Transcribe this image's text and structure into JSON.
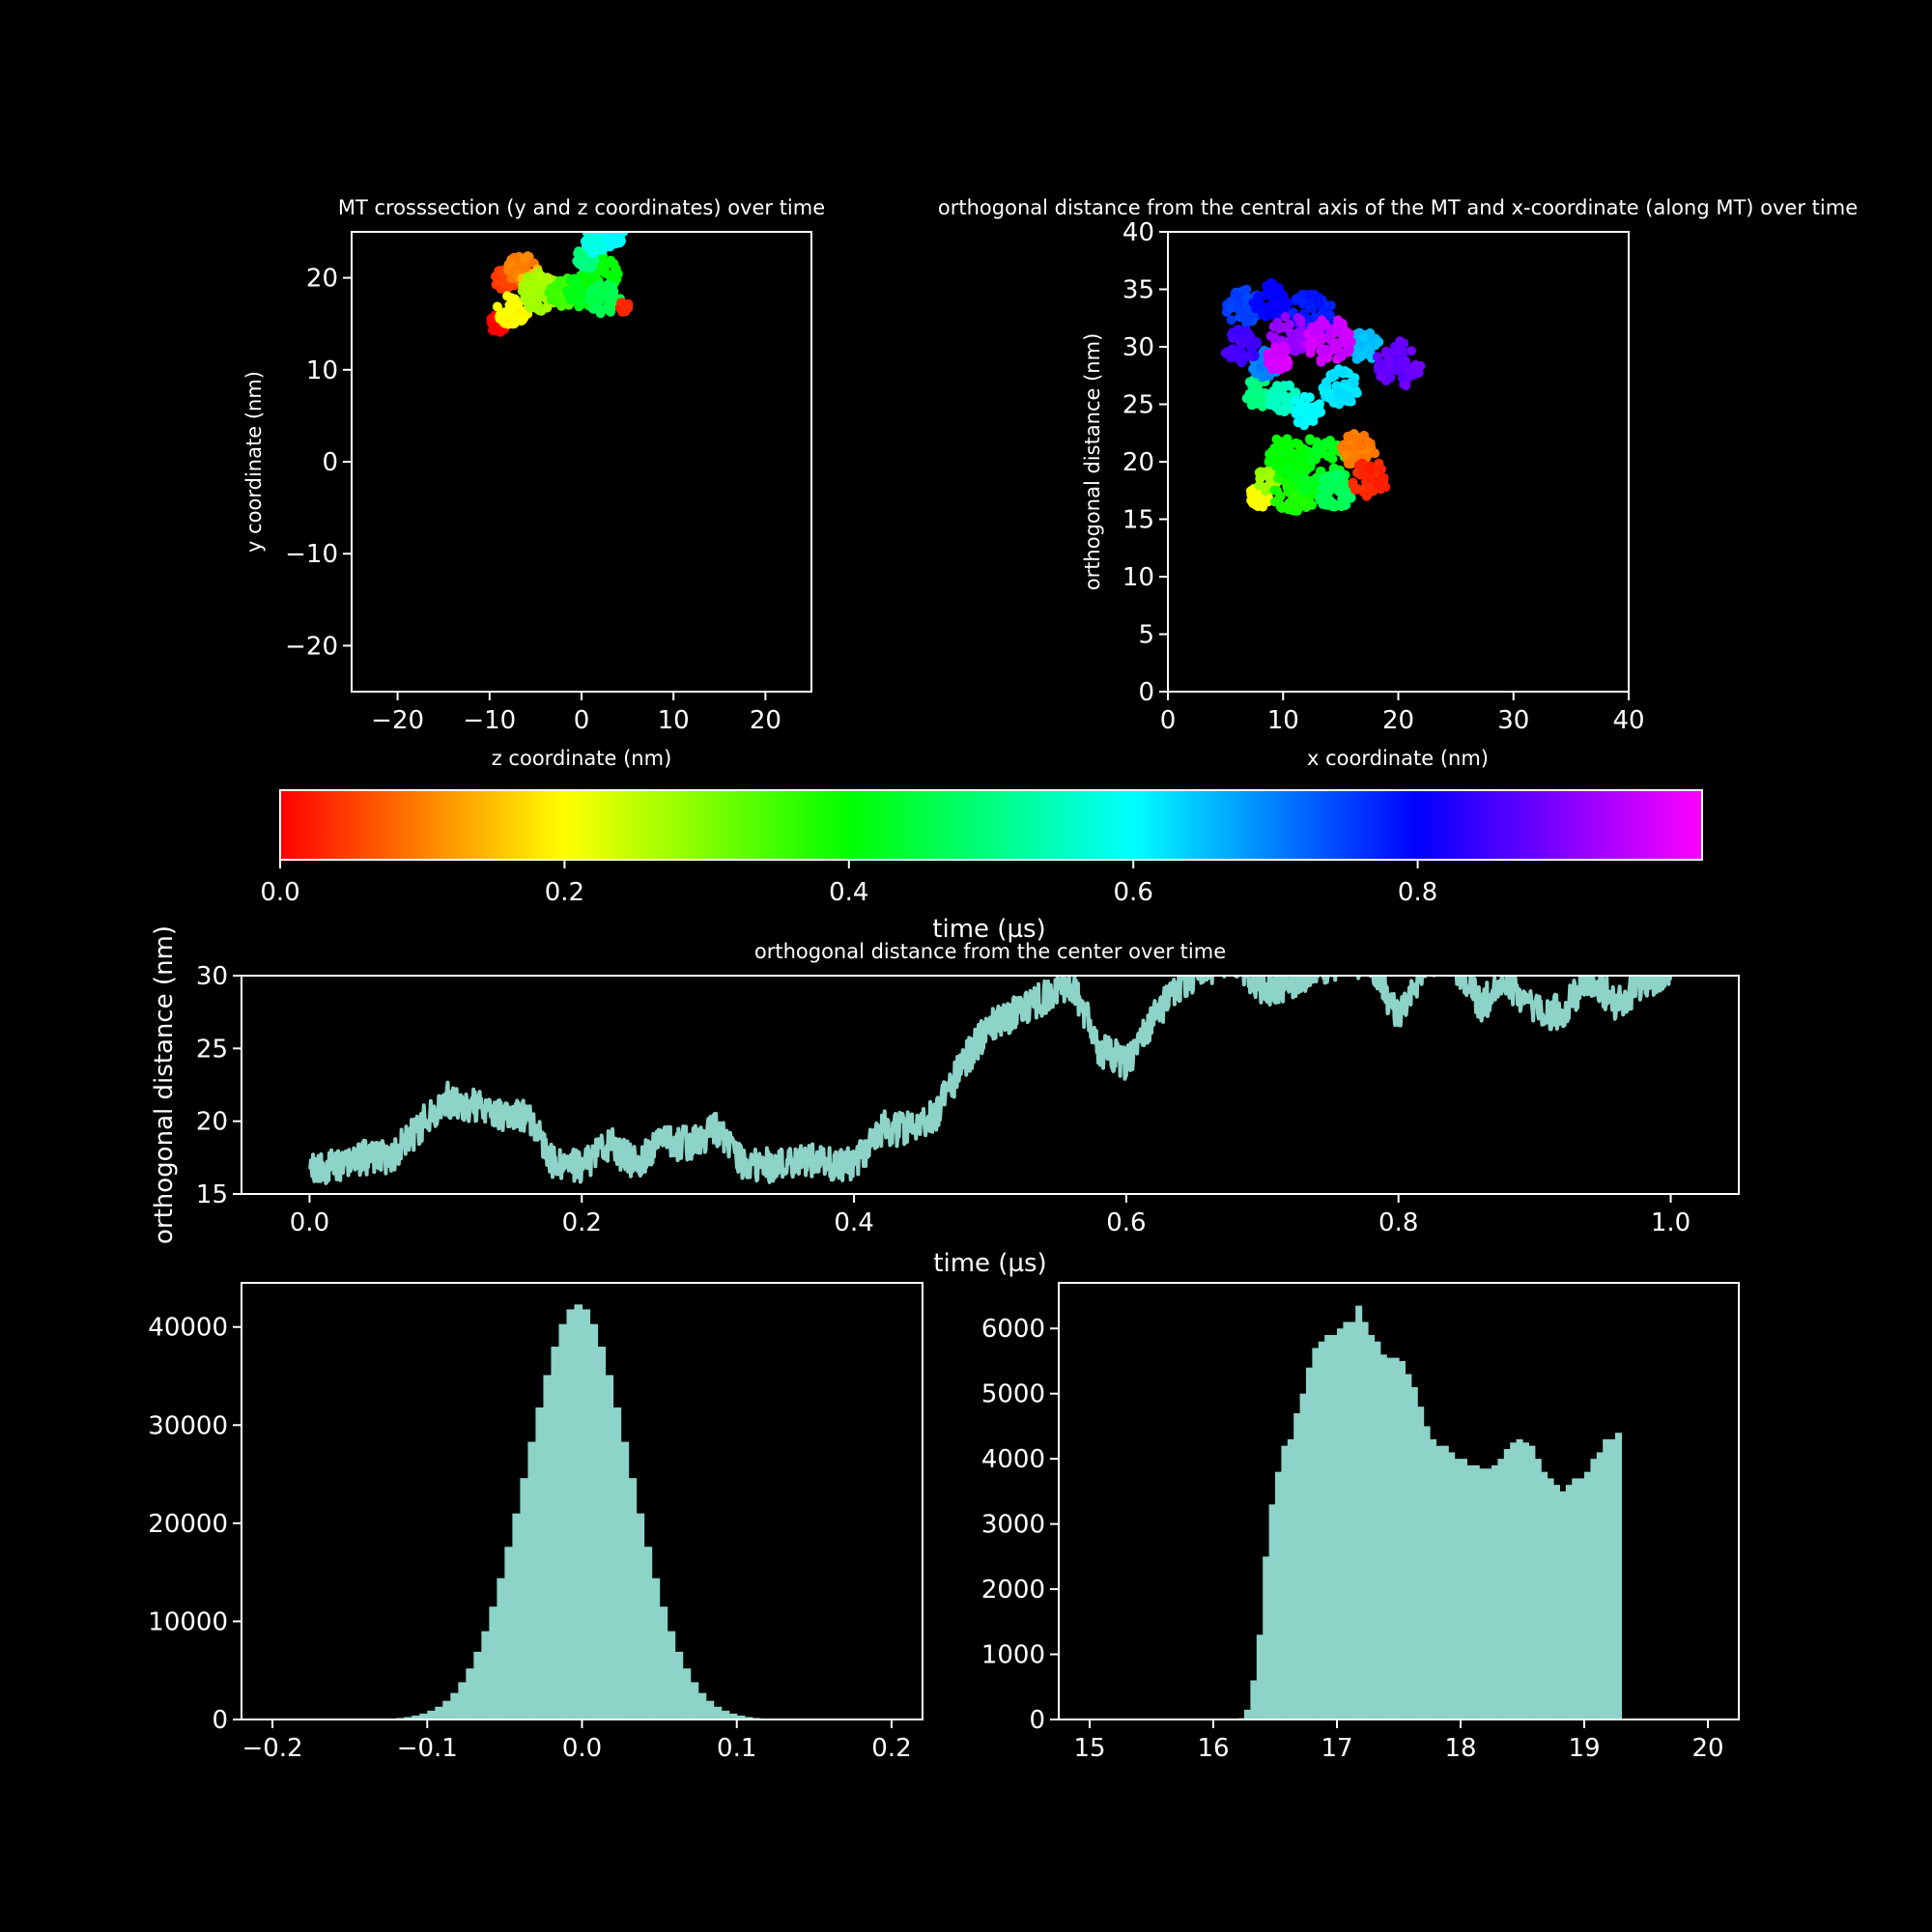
{
  "colors": {
    "background": "#000000",
    "foreground": "#ffffff",
    "series": "#8dd3c7",
    "colormap": [
      "#ff0000",
      "#ffff00",
      "#00ff00",
      "#00ffff",
      "#0000ff",
      "#ff00ff"
    ]
  },
  "chart_data": [
    {
      "id": "crosssection",
      "type": "scatter",
      "title": "MT crosssection (y and z coordinates) over time",
      "xlabel": "z coordinate (nm)",
      "ylabel": "y coordinate (nm)",
      "xlim": [
        -25,
        25
      ],
      "ylim": [
        -25,
        25
      ],
      "xticks": [
        -20,
        -10,
        0,
        10,
        20
      ],
      "xtick_labels": [
        "−20",
        "−10",
        "0",
        "10",
        "20"
      ],
      "yticks": [
        -20,
        -10,
        0,
        10,
        20
      ],
      "ytick_labels": [
        "−20",
        "−10",
        "0",
        "10",
        "20"
      ],
      "color_by": "time (µs)",
      "clusters": [
        {
          "t": 0.0,
          "x": -9.0,
          "y": 15.0,
          "r": 1.0
        },
        {
          "t": 0.05,
          "x": -8.3,
          "y": 19.8,
          "r": 1.2
        },
        {
          "t": 0.1,
          "x": -6.5,
          "y": 21.0,
          "r": 1.6
        },
        {
          "t": 0.15,
          "x": -5.0,
          "y": 19.5,
          "r": 1.6
        },
        {
          "t": 0.2,
          "x": -7.5,
          "y": 16.5,
          "r": 1.7
        },
        {
          "t": 0.27,
          "x": -4.5,
          "y": 18.5,
          "r": 2.1
        },
        {
          "t": 0.35,
          "x": -2.0,
          "y": 18.5,
          "r": 1.6
        },
        {
          "t": 0.42,
          "x": 0.2,
          "y": 18.5,
          "r": 1.9
        },
        {
          "t": 0.4,
          "x": 2.0,
          "y": 20.5,
          "r": 2.0
        },
        {
          "t": 0.46,
          "x": 2.5,
          "y": 17.8,
          "r": 1.7
        },
        {
          "t": 0.5,
          "x": 0.5,
          "y": 22.0,
          "r": 1.2
        },
        {
          "t": 0.58,
          "x": 1.5,
          "y": 24.0,
          "r": 1.3
        },
        {
          "t": 0.61,
          "x": 3.5,
          "y": 24.5,
          "r": 1.2
        },
        {
          "t": 0.03,
          "x": 4.6,
          "y": 16.8,
          "r": 0.6
        }
      ]
    },
    {
      "id": "orthogonal-vs-x",
      "type": "scatter",
      "title": "orthogonal distance from the central axis of the MT and x-coordinate (along MT) over time",
      "xlabel": "x coordinate (nm)",
      "ylabel": "orthogonal distance (nm)",
      "xlim": [
        0,
        40
      ],
      "ylim": [
        0,
        40
      ],
      "xticks": [
        0,
        10,
        20,
        30,
        40
      ],
      "xtick_labels": [
        "0",
        "10",
        "20",
        "30",
        "40"
      ],
      "yticks": [
        0,
        5,
        10,
        15,
        20,
        25,
        30,
        35,
        40
      ],
      "ytick_labels": [
        "0",
        "5",
        "10",
        "15",
        "20",
        "25",
        "30",
        "35",
        "40"
      ],
      "color_by": "time (µs)",
      "clusters": [
        {
          "t": 0.2,
          "x": 8.0,
          "y": 17.0,
          "r": 1.0
        },
        {
          "t": 0.28,
          "x": 9.0,
          "y": 18.5,
          "r": 1.2
        },
        {
          "t": 0.38,
          "x": 11.0,
          "y": 17.5,
          "r": 2.0
        },
        {
          "t": 0.42,
          "x": 13.0,
          "y": 19.5,
          "r": 2.6
        },
        {
          "t": 0.4,
          "x": 10.5,
          "y": 20.5,
          "r": 1.8
        },
        {
          "t": 0.47,
          "x": 14.5,
          "y": 17.5,
          "r": 1.6
        },
        {
          "t": 0.1,
          "x": 16.5,
          "y": 21.0,
          "r": 1.5
        },
        {
          "t": 0.03,
          "x": 17.5,
          "y": 18.5,
          "r": 1.6
        },
        {
          "t": 0.5,
          "x": 8.0,
          "y": 26.0,
          "r": 1.3
        },
        {
          "t": 0.55,
          "x": 10.0,
          "y": 25.5,
          "r": 1.3
        },
        {
          "t": 0.6,
          "x": 12.0,
          "y": 24.5,
          "r": 1.4
        },
        {
          "t": 0.62,
          "x": 15.0,
          "y": 26.5,
          "r": 1.6
        },
        {
          "t": 0.65,
          "x": 17.0,
          "y": 30.0,
          "r": 1.4
        },
        {
          "t": 0.7,
          "x": 8.5,
          "y": 28.5,
          "r": 1.2
        },
        {
          "t": 0.75,
          "x": 6.5,
          "y": 33.5,
          "r": 1.6
        },
        {
          "t": 0.8,
          "x": 9.0,
          "y": 34.0,
          "r": 1.6
        },
        {
          "t": 0.78,
          "x": 12.5,
          "y": 33.0,
          "r": 1.8
        },
        {
          "t": 0.85,
          "x": 6.5,
          "y": 30.0,
          "r": 1.6
        },
        {
          "t": 0.88,
          "x": 20.0,
          "y": 28.5,
          "r": 2.0
        },
        {
          "t": 0.92,
          "x": 10.5,
          "y": 31.0,
          "r": 1.8
        },
        {
          "t": 0.96,
          "x": 14.0,
          "y": 30.5,
          "r": 2.0
        },
        {
          "t": 0.97,
          "x": 9.5,
          "y": 29.0,
          "r": 1.2
        }
      ]
    },
    {
      "id": "colorbar",
      "type": "heatmap",
      "xlabel": "time (µs)",
      "range": [
        0,
        1
      ],
      "ticks": [
        0.0,
        0.2,
        0.4,
        0.6,
        0.8
      ],
      "tick_labels": [
        "0.0",
        "0.2",
        "0.4",
        "0.6",
        "0.8"
      ]
    },
    {
      "id": "distance-over-time",
      "type": "line",
      "title": "orthogonal distance from the center over time",
      "xlabel": "time (µs)",
      "ylabel": "orthogonal distance (nm)",
      "xlim": [
        -0.05,
        1.05
      ],
      "ylim": [
        15,
        30
      ],
      "xticks": [
        0.0,
        0.2,
        0.4,
        0.6,
        0.8,
        1.0
      ],
      "xtick_labels": [
        "0.0",
        "0.2",
        "0.4",
        "0.6",
        "0.8",
        "1.0"
      ],
      "yticks": [
        15,
        20,
        25,
        30
      ],
      "ytick_labels": [
        "15",
        "20",
        "25",
        "30"
      ],
      "x": [
        0.0,
        0.02,
        0.04,
        0.06,
        0.08,
        0.1,
        0.12,
        0.14,
        0.16,
        0.18,
        0.2,
        0.22,
        0.24,
        0.26,
        0.28,
        0.3,
        0.32,
        0.34,
        0.36,
        0.38,
        0.4,
        0.42,
        0.44,
        0.46,
        0.48,
        0.5,
        0.52,
        0.54,
        0.56,
        0.58,
        0.6,
        0.62,
        0.64,
        0.66,
        0.68,
        0.7,
        0.72,
        0.74,
        0.76,
        0.78,
        0.8,
        0.82,
        0.84,
        0.86,
        0.88,
        0.9,
        0.92,
        0.94,
        0.96,
        0.98,
        1.0
      ],
      "y": [
        16.5,
        17.0,
        17.5,
        17.5,
        19.5,
        21.5,
        21.0,
        20.5,
        20.5,
        17.0,
        17.0,
        18.5,
        17.0,
        18.5,
        18.5,
        19.5,
        17.0,
        17.0,
        17.5,
        17.0,
        17.0,
        19.5,
        19.5,
        20.5,
        24.0,
        26.5,
        27.5,
        28.5,
        29.5,
        25.0,
        24.0,
        27.0,
        29.5,
        30.5,
        31.0,
        29.0,
        29.5,
        30.5,
        31.0,
        31.0,
        27.0,
        31.0,
        31.0,
        28.0,
        29.5,
        27.5,
        27.5,
        30.0,
        28.0,
        29.5,
        30.5
      ]
    },
    {
      "id": "hist-left",
      "type": "bar",
      "xlim": [
        -0.22,
        0.22
      ],
      "ylim": [
        0,
        44500
      ],
      "xticks": [
        -0.2,
        -0.1,
        0.0,
        0.1,
        0.2
      ],
      "xtick_labels": [
        "−0.2",
        "−0.1",
        "0.0",
        "0.1",
        "0.2"
      ],
      "yticks": [
        0,
        10000,
        20000,
        30000,
        40000
      ],
      "ytick_labels": [
        "0",
        "10000",
        "20000",
        "30000",
        "40000"
      ],
      "bin_start": -0.2,
      "bin_width": 0.005,
      "values": [
        0,
        0,
        0,
        0,
        0,
        0,
        0,
        0,
        0,
        0,
        0,
        0,
        10,
        20,
        40,
        80,
        150,
        250,
        400,
        600,
        900,
        1300,
        1900,
        2700,
        3800,
        5200,
        6900,
        9000,
        11500,
        14400,
        17600,
        21000,
        24600,
        28300,
        31800,
        35100,
        38000,
        40300,
        41800,
        42300,
        41800,
        40300,
        38000,
        35100,
        31800,
        28300,
        24600,
        21000,
        17600,
        14400,
        11500,
        9000,
        6900,
        5200,
        3800,
        2700,
        1900,
        1300,
        900,
        600,
        400,
        250,
        150,
        80,
        40,
        20,
        10,
        0,
        0,
        0,
        0,
        0,
        0,
        0,
        0,
        0,
        0,
        0,
        0,
        0
      ]
    },
    {
      "id": "hist-right",
      "type": "bar",
      "xlim": [
        14.75,
        20.25
      ],
      "ylim": [
        0,
        6700
      ],
      "xticks": [
        15,
        16,
        17,
        18,
        19,
        20
      ],
      "xtick_labels": [
        "15",
        "16",
        "17",
        "18",
        "19",
        "20"
      ],
      "yticks": [
        0,
        1000,
        2000,
        3000,
        4000,
        5000,
        6000
      ],
      "ytick_labels": [
        "0",
        "1000",
        "2000",
        "3000",
        "4000",
        "5000",
        "6000"
      ],
      "bin_start": 16.2,
      "bin_width": 0.05,
      "values": [
        20,
        150,
        600,
        1300,
        2500,
        3300,
        3800,
        4200,
        4300,
        4700,
        5000,
        5400,
        5700,
        5800,
        5900,
        5900,
        6000,
        6100,
        6100,
        6350,
        6100,
        5900,
        5800,
        5600,
        5550,
        5550,
        5500,
        5300,
        5100,
        4800,
        4500,
        4300,
        4200,
        4200,
        4100,
        4000,
        4000,
        3900,
        3900,
        3850,
        3850,
        3900,
        4000,
        4150,
        4250,
        4300,
        4250,
        4200,
        4000,
        3800,
        3700,
        3600,
        3500,
        3600,
        3700,
        3700,
        3800,
        4000,
        4100,
        4300,
        4300,
        4400
      ]
    }
  ]
}
